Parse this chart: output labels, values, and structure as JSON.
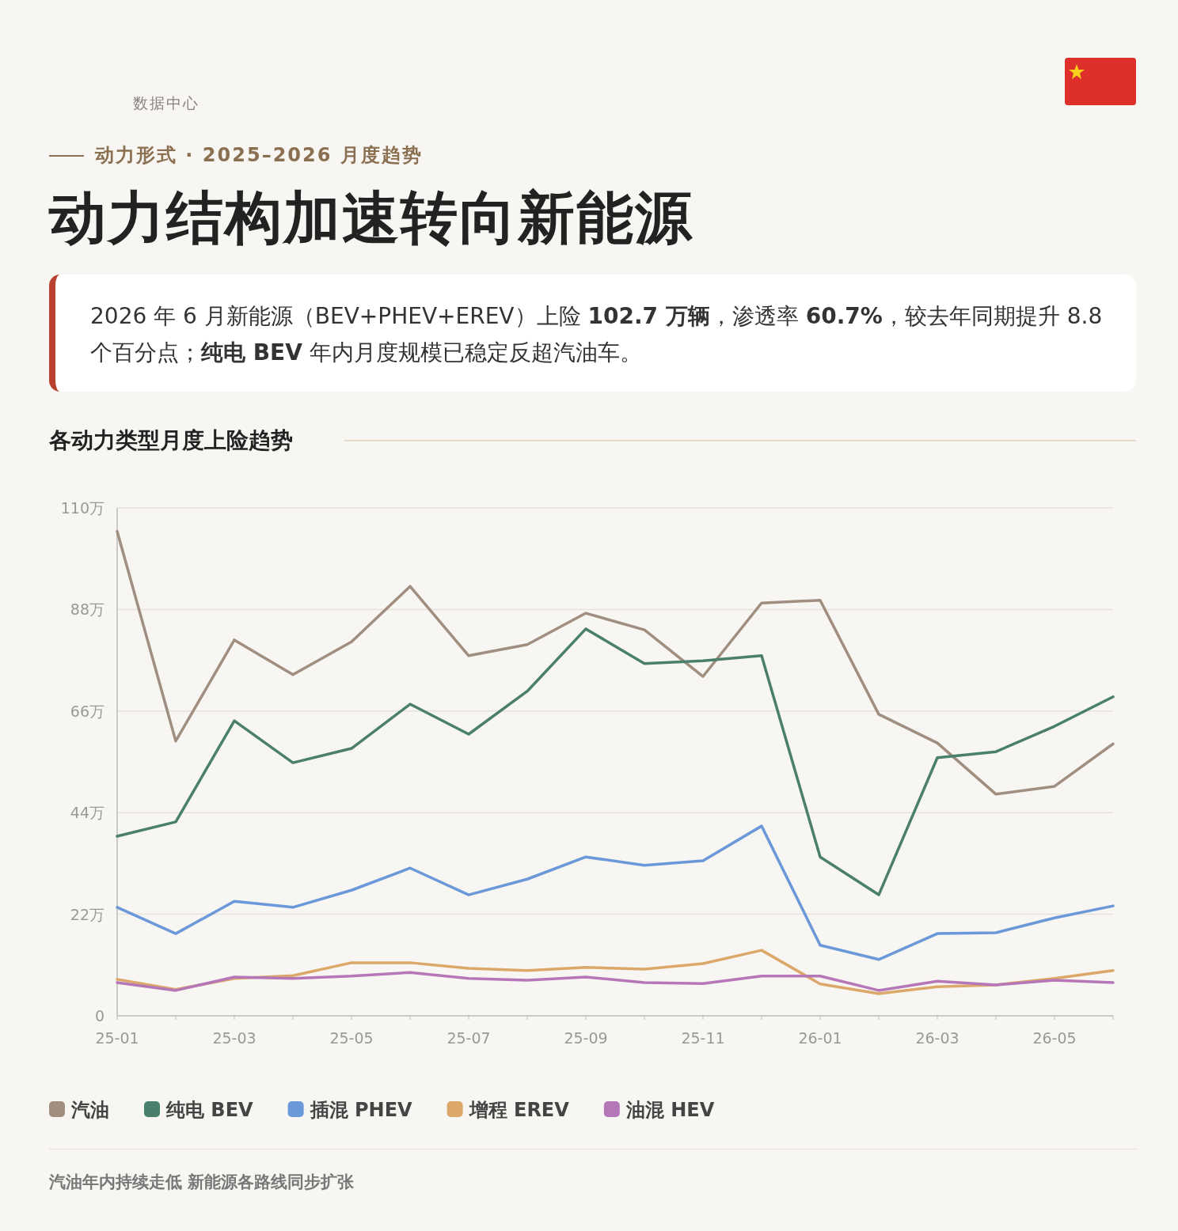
{
  "chart_data": {
    "type": "line",
    "title": "动力结构加速转向新能源",
    "subtitle": "各动力类型月度上险趋势",
    "annotations": [
      "数据中心",
      "动力形式 · 2025–2026 月度趋势",
      "2026 年 6 月新能源（BEV+PHEV+EREV）上险 **102.7 万辆**，渗透率 **60.7%**，较去年同期提升 8.8 个百分点；**纯电 BEV** 年内月度规模已稳定反超汽油车。",
      "汽油年内持续走低 新能源各路线同步扩张"
    ],
    "categories": [
      "25-01",
      null,
      "25-03",
      null,
      "25-05",
      null,
      "25-07",
      null,
      "25-09",
      null,
      "25-11",
      null,
      "26-01",
      null,
      "26-03",
      null,
      "26-05",
      null
    ],
    "series": [
      {
        "name": "汽油",
        "color": "#a08e80",
        "values": [
          104.9,
          59.5,
          81.4,
          73.9,
          81.0,
          93.0,
          78.0,
          80.4,
          87.2,
          83.6,
          73.5,
          89.4,
          90.0,
          65.3,
          59.1,
          48.0,
          49.7,
          58.9
        ]
      },
      {
        "name": "纯电 BEV",
        "color": "#4a7f6c",
        "values": [
          38.9,
          42.0,
          63.9,
          54.8,
          57.9,
          67.5,
          61.0,
          70.3,
          83.8,
          76.3,
          76.9,
          78.0,
          34.4,
          26.2,
          55.9,
          57.2,
          62.7,
          69.1
        ]
      },
      {
        "name": "插混 PHEV",
        "color": "#6a98d8",
        "values": [
          23.5,
          17.8,
          24.8,
          23.5,
          27.2,
          32.0,
          26.2,
          29.6,
          34.4,
          32.6,
          33.6,
          41.1,
          15.3,
          12.2,
          17.8,
          18.0,
          21.2,
          23.8
        ]
      },
      {
        "name": "增程 EREV",
        "color": "#dba86a",
        "values": [
          7.9,
          5.7,
          8.1,
          8.7,
          11.5,
          11.5,
          10.3,
          9.8,
          10.5,
          10.1,
          11.3,
          14.2,
          6.9,
          4.8,
          6.3,
          6.7,
          8.1,
          9.8
        ]
      },
      {
        "name": "油混 HEV",
        "color": "#b577b7",
        "values": [
          7.2,
          5.5,
          8.4,
          8.1,
          8.6,
          9.4,
          8.1,
          7.7,
          8.4,
          7.2,
          7.0,
          8.6,
          8.6,
          5.5,
          7.5,
          6.7,
          7.7,
          7.2
        ]
      }
    ],
    "ylim": [
      0,
      110
    ],
    "yticks": [
      0,
      {
        "value": 22,
        "label": "22万"
      },
      {
        "value": 44,
        "label": "44万"
      },
      {
        "value": 66,
        "label": "66万"
      },
      {
        "value": 88,
        "label": "88万"
      },
      {
        "value": 110,
        "label": "110万"
      }
    ],
    "grid": "y",
    "legend": "bottom",
    "marker": "none",
    "line_style": "solid"
  }
}
